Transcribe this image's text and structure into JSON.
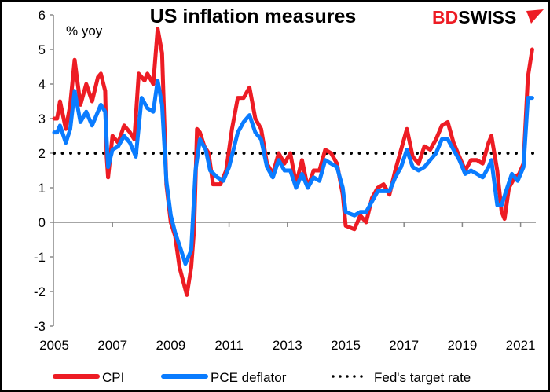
{
  "chart_data": {
    "type": "line",
    "title": "US inflation measures",
    "ylabel": "% yoy",
    "xlabel": "",
    "ylim": [
      -3,
      6
    ],
    "yticks": [
      6,
      5,
      4,
      3,
      2,
      1,
      0,
      -1,
      -2,
      -3
    ],
    "xlim": [
      2005,
      2021.5
    ],
    "xticks": [
      "2005",
      "2007",
      "2009",
      "2011",
      "2013",
      "2015",
      "2017",
      "2019",
      "2021"
    ],
    "grid": false,
    "legend_position": "bottom",
    "series": [
      {
        "name": "CPI",
        "color": "#ed1c24",
        "x": [
          2005.0,
          2005.1,
          2005.2,
          2005.4,
          2005.55,
          2005.7,
          2005.9,
          2006.1,
          2006.3,
          2006.5,
          2006.6,
          2006.75,
          2006.8,
          2006.85,
          2007.0,
          2007.2,
          2007.4,
          2007.6,
          2007.75,
          2007.9,
          2008.1,
          2008.2,
          2008.4,
          2008.55,
          2008.7,
          2008.85,
          2009.0,
          2009.15,
          2009.3,
          2009.55,
          2009.7,
          2009.8,
          2009.9,
          2010.0,
          2010.15,
          2010.3,
          2010.45,
          2010.7,
          2010.9,
          2011.1,
          2011.3,
          2011.5,
          2011.7,
          2011.9,
          2012.1,
          2012.3,
          2012.5,
          2012.7,
          2012.9,
          2013.1,
          2013.3,
          2013.5,
          2013.7,
          2013.9,
          2014.1,
          2014.3,
          2014.5,
          2014.7,
          2014.9,
          2015.0,
          2015.3,
          2015.5,
          2015.7,
          2015.9,
          2016.1,
          2016.3,
          2016.5,
          2016.7,
          2016.9,
          2017.1,
          2017.3,
          2017.5,
          2017.7,
          2017.9,
          2018.1,
          2018.3,
          2018.5,
          2018.7,
          2018.9,
          2019.1,
          2019.3,
          2019.5,
          2019.7,
          2019.9,
          2020.0,
          2020.2,
          2020.35,
          2020.45,
          2020.6,
          2020.8,
          2020.95,
          2021.1,
          2021.25,
          2021.4
        ],
        "values": [
          3.0,
          3.0,
          3.5,
          2.7,
          3.4,
          4.7,
          3.4,
          4.0,
          3.5,
          4.2,
          4.3,
          3.8,
          1.9,
          1.3,
          2.5,
          2.3,
          2.8,
          2.6,
          2.4,
          4.3,
          4.1,
          4.3,
          4.0,
          5.6,
          4.9,
          1.1,
          0.0,
          -0.4,
          -1.3,
          -2.1,
          -1.3,
          -0.2,
          2.7,
          2.6,
          2.2,
          2.0,
          1.1,
          1.1,
          1.5,
          2.7,
          3.6,
          3.6,
          3.9,
          3.0,
          2.7,
          1.7,
          1.4,
          2.0,
          1.7,
          2.0,
          1.1,
          1.8,
          1.0,
          1.5,
          1.5,
          2.1,
          2.0,
          1.7,
          0.8,
          -0.1,
          -0.2,
          0.2,
          0.0,
          0.7,
          1.0,
          1.1,
          0.8,
          1.5,
          2.1,
          2.7,
          1.9,
          1.7,
          2.2,
          2.1,
          2.4,
          2.8,
          2.9,
          2.3,
          1.9,
          1.5,
          1.8,
          1.8,
          1.7,
          2.3,
          2.5,
          1.5,
          0.3,
          0.1,
          1.0,
          1.3,
          1.4,
          1.7,
          4.2,
          5.0
        ]
      },
      {
        "name": "PCE deflator",
        "color": "#0a7cff",
        "x": [
          2005.0,
          2005.1,
          2005.2,
          2005.4,
          2005.55,
          2005.7,
          2005.9,
          2006.1,
          2006.3,
          2006.6,
          2006.75,
          2006.85,
          2007.0,
          2007.2,
          2007.4,
          2007.6,
          2007.8,
          2008.0,
          2008.2,
          2008.4,
          2008.55,
          2008.7,
          2008.85,
          2009.0,
          2009.15,
          2009.35,
          2009.5,
          2009.7,
          2009.85,
          2010.0,
          2010.2,
          2010.35,
          2010.6,
          2010.8,
          2011.0,
          2011.3,
          2011.5,
          2011.7,
          2011.9,
          2012.1,
          2012.3,
          2012.5,
          2012.7,
          2012.9,
          2013.1,
          2013.3,
          2013.5,
          2013.7,
          2013.9,
          2014.1,
          2014.3,
          2014.5,
          2014.7,
          2014.9,
          2015.0,
          2015.3,
          2015.5,
          2015.7,
          2015.9,
          2016.1,
          2016.3,
          2016.5,
          2016.7,
          2016.9,
          2017.1,
          2017.3,
          2017.5,
          2017.7,
          2017.9,
          2018.1,
          2018.3,
          2018.5,
          2018.7,
          2018.9,
          2019.1,
          2019.3,
          2019.5,
          2019.7,
          2019.9,
          2020.0,
          2020.2,
          2020.35,
          2020.5,
          2020.7,
          2020.9,
          2021.1,
          2021.25,
          2021.4
        ],
        "values": [
          2.6,
          2.6,
          2.8,
          2.3,
          2.7,
          3.8,
          2.9,
          3.2,
          2.8,
          3.4,
          3.2,
          1.6,
          2.1,
          2.2,
          2.5,
          2.3,
          1.9,
          3.6,
          3.3,
          3.2,
          4.1,
          3.4,
          1.2,
          0.2,
          -0.3,
          -0.8,
          -1.2,
          -0.8,
          1.5,
          2.4,
          2.1,
          1.5,
          1.3,
          1.2,
          1.6,
          2.6,
          2.9,
          3.1,
          2.6,
          2.4,
          1.6,
          1.3,
          1.8,
          1.5,
          1.5,
          1.0,
          1.4,
          1.0,
          1.3,
          1.2,
          1.8,
          1.7,
          1.6,
          1.0,
          0.3,
          0.2,
          0.3,
          0.3,
          0.6,
          0.9,
          0.9,
          0.9,
          1.3,
          1.6,
          2.1,
          1.6,
          1.5,
          1.6,
          1.8,
          2.0,
          2.4,
          2.4,
          2.1,
          1.8,
          1.4,
          1.5,
          1.4,
          1.3,
          1.6,
          1.8,
          0.5,
          0.5,
          0.9,
          1.4,
          1.2,
          1.6,
          3.6,
          3.6
        ]
      },
      {
        "name": "Fed's target rate",
        "color": "#000000",
        "style": "dotted",
        "x": [
          2005.0,
          2021.5
        ],
        "values": [
          2,
          2
        ]
      }
    ]
  },
  "logo": {
    "part1": "BD",
    "part2": "SWISS",
    "color1": "#ed1c24",
    "color2": "#000000"
  }
}
